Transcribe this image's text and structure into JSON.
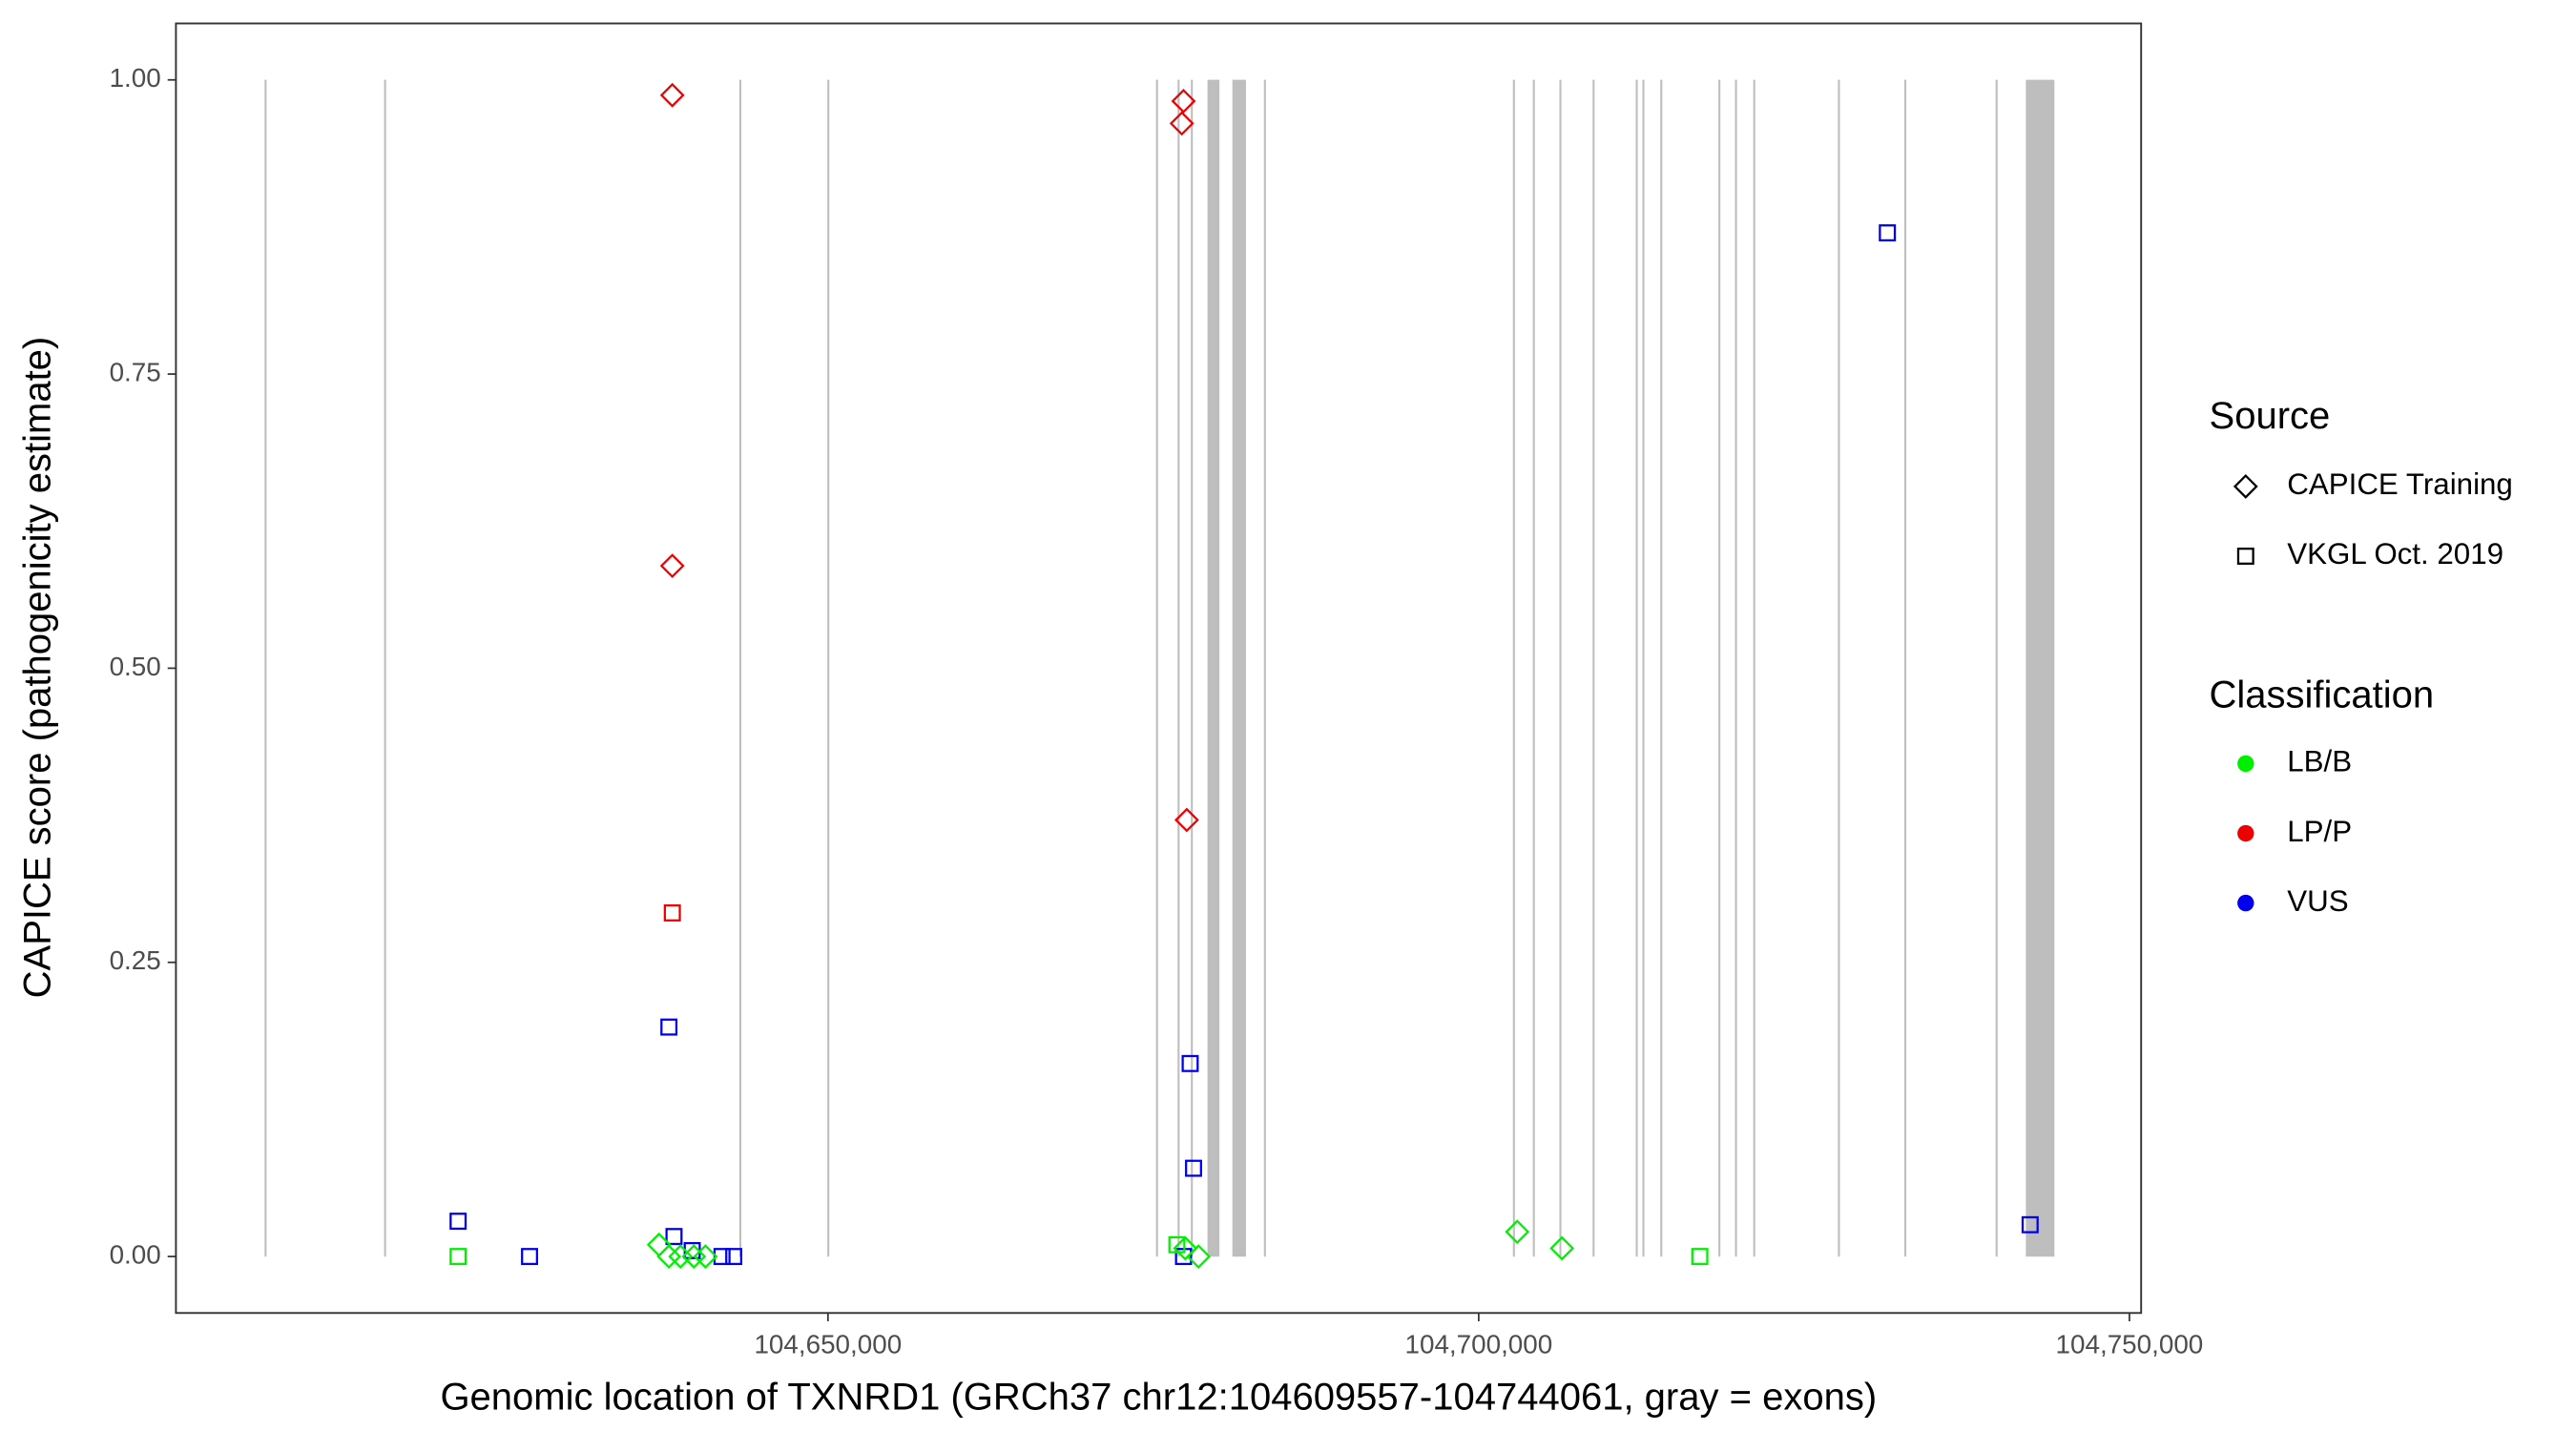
{
  "chart_data": {
    "type": "scatter",
    "x_label": "Genomic location of TXNRD1 (GRCh37 chr12:104609557-104744061, gray = exons)",
    "y_label": "CAPICE score (pathogenicity estimate)",
    "xlim": [
      104599900,
      104750900
    ],
    "ylim": [
      -0.048,
      1.048
    ],
    "xticks": [
      {
        "value": 104650000,
        "label": "104,650,000"
      },
      {
        "value": 104700000,
        "label": "104,700,000"
      },
      {
        "value": 104750000,
        "label": "104,750,000"
      }
    ],
    "yticks": [
      {
        "value": 0,
        "label": "0.00"
      },
      {
        "value": 0.25,
        "label": "0.25"
      },
      {
        "value": 0.5,
        "label": "0.50"
      },
      {
        "value": 0.75,
        "label": "0.75"
      },
      {
        "value": 1,
        "label": "1.00"
      }
    ],
    "exon_color": "#bebebe",
    "exons": [
      [
        104606788,
        104606788
      ],
      [
        104615971,
        104615971
      ],
      [
        104643267,
        104643267
      ],
      [
        104650028,
        104650028
      ],
      [
        104675283,
        104675283
      ],
      [
        104676941,
        104676941
      ],
      [
        104677961,
        104677961
      ],
      [
        104679237,
        104680002
      ],
      [
        104681150,
        104682043
      ],
      [
        104683573,
        104683573
      ],
      [
        104702706,
        104702706
      ],
      [
        104704237,
        104704237
      ],
      [
        104706278,
        104706278
      ],
      [
        104708829,
        104708829
      ],
      [
        104712145,
        104712145
      ],
      [
        104712655,
        104712655
      ],
      [
        104714031,
        104714031
      ],
      [
        104718495,
        104718495
      ],
      [
        104719770,
        104719770
      ],
      [
        104721173,
        104721173
      ],
      [
        104727679,
        104727679
      ],
      [
        104732781,
        104732781
      ],
      [
        104739796,
        104739796
      ],
      [
        104742119,
        104744160
      ]
    ],
    "legend_source": {
      "title": "Source",
      "items": [
        {
          "name": "CAPICE Training",
          "shape": "diamond"
        },
        {
          "name": "VKGL Oct. 2019",
          "shape": "square"
        }
      ]
    },
    "legend_classification": {
      "title": "Classification",
      "items": [
        {
          "name": "LB/B",
          "color": "#00ee00"
        },
        {
          "name": "LP/P",
          "color": "#ee0000"
        },
        {
          "name": "VUS",
          "color": "#0000ee"
        }
      ]
    },
    "series": [
      {
        "shape": "diamond",
        "color": "#ee0000",
        "x": [
          104638040,
          104638040,
          104677320,
          104677190,
          104677570
        ],
        "values": [
          0.987,
          0.587,
          0.982,
          0.963,
          0.371
        ]
      },
      {
        "shape": "square",
        "color": "#ee0000",
        "x": [
          104638040
        ],
        "values": [
          0.292
        ]
      },
      {
        "shape": "square",
        "color": "#0000ee",
        "x": [
          104621580,
          104627070,
          104637780,
          104638170,
          104639570,
          104641860,
          104642760,
          104677830,
          104678090,
          104677320,
          104731400,
          104742370
        ],
        "values": [
          0.03,
          0,
          0.195,
          0.017,
          0.005,
          0,
          0,
          0.164,
          0.075,
          0,
          0.87,
          0.027
        ]
      },
      {
        "shape": "square",
        "color": "#00ee00",
        "x": [
          104621580,
          104676810,
          104716990
        ],
        "values": [
          0,
          0.01,
          0
        ]
      },
      {
        "shape": "diamond",
        "color": "#00ee00",
        "x": [
          104637020,
          104637780,
          104638670,
          104639700,
          104640590,
          104677450,
          104678470,
          104702960,
          104706400
        ],
        "values": [
          0.01,
          0,
          0,
          0,
          0,
          0.007,
          0,
          0.021,
          0.007
        ]
      }
    ]
  }
}
